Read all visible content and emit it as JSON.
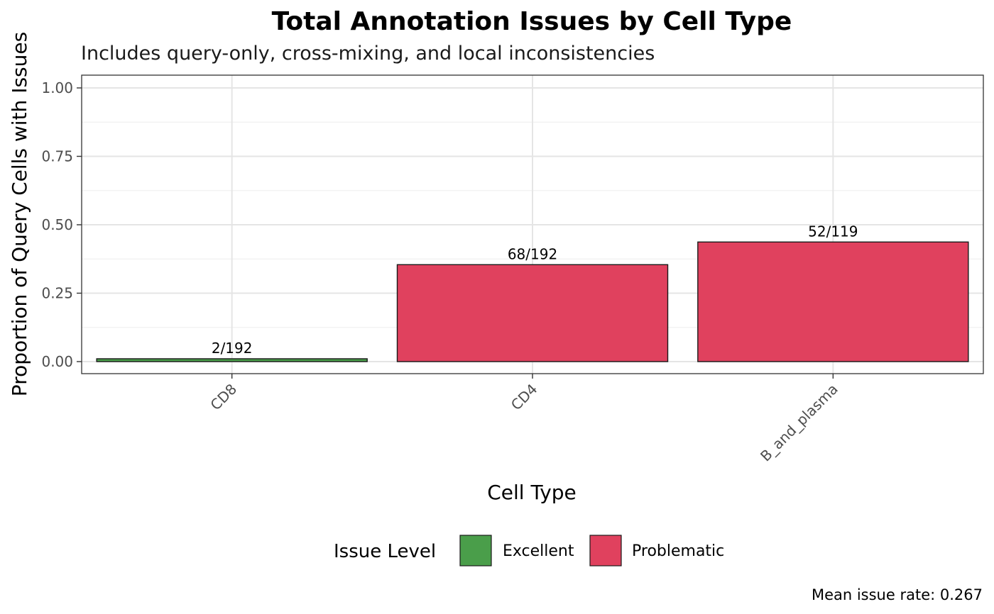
{
  "chart_data": {
    "type": "bar",
    "title": "Total Annotation Issues by Cell Type",
    "subtitle": "Includes query-only, cross-mixing, and local inconsistencies",
    "xlabel": "Cell Type",
    "ylabel": "Proportion of Query Cells with Issues",
    "ylim": [
      0,
      1.05
    ],
    "yticks": [
      "0.00",
      "0.25",
      "0.50",
      "0.75",
      "1.00"
    ],
    "ytick_values": [
      0,
      0.25,
      0.5,
      0.75,
      1.0
    ],
    "grid": true,
    "categories": [
      "CD8",
      "CD4",
      "B_and_plasma"
    ],
    "values": [
      0.0104,
      0.3542,
      0.437
    ],
    "bar_labels": [
      "2/192",
      "68/192",
      "52/119"
    ],
    "levels": [
      "Excellent",
      "Problematic",
      "Problematic"
    ],
    "legend": {
      "title": "Issue Level",
      "position": "bottom",
      "items": [
        {
          "label": "Excellent",
          "color": "#4a9e4a"
        },
        {
          "label": "Problematic",
          "color": "#e0415e"
        }
      ]
    },
    "caption": "Mean issue rate: 0.267"
  }
}
